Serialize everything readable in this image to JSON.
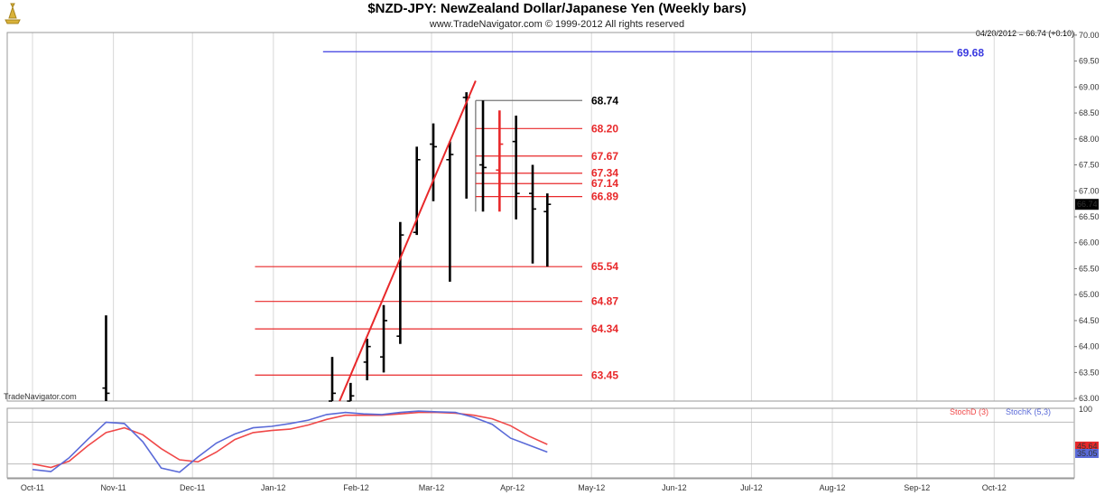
{
  "header": {
    "title": "$NZD-JPY:  NewZealand Dollar/Japanese Yen  (Weekly bars)",
    "subtitle": "www.TradeNavigator.com © 1999-2012 All rights reserved",
    "quote": "04/20/2012 = 66.74 (+0.10)",
    "watermark": "TradeNavigator.com",
    "last_price_tag": "66.74"
  },
  "colors": {
    "bar": "#000000",
    "fib_red": "#e8282a",
    "fib_grey": "#777777",
    "target_blue": "#3a3ae0",
    "stoch_d": "#f04848",
    "stoch_k": "#5a6ad8",
    "grid": "#d8d8d8"
  },
  "chart_data": {
    "type": "ohlc",
    "y_ticks": [
      "63.00",
      "63.50",
      "64.00",
      "64.50",
      "65.00",
      "65.50",
      "66.00",
      "66.50",
      "67.00",
      "67.50",
      "68.00",
      "68.50",
      "69.00",
      "69.50",
      "70.00"
    ],
    "ylim": [
      62.95,
      70.05
    ],
    "x_ticks": [
      {
        "label": "Oct-11",
        "week": 0
      },
      {
        "label": "Nov-11",
        "week": 4.4
      },
      {
        "label": "Dec-11",
        "week": 8.7
      },
      {
        "label": "Jan-12",
        "week": 13.1
      },
      {
        "label": "Feb-12",
        "week": 17.6
      },
      {
        "label": "Mar-12",
        "week": 21.7
      },
      {
        "label": "Apr-12",
        "week": 26.1
      },
      {
        "label": "May-12",
        "week": 30.4
      },
      {
        "label": "Jun-12",
        "week": 34.9
      },
      {
        "label": "Jul-12",
        "week": 39.1
      },
      {
        "label": "Aug-12",
        "week": 43.5
      },
      {
        "label": "Sep-12",
        "week": 48.1
      },
      {
        "label": "Oct-12",
        "week": 52.3
      }
    ],
    "bars": [
      {
        "week": 4.0,
        "open": 63.2,
        "high": 64.6,
        "low": 62.9,
        "close": 63.1
      },
      {
        "week": 16.3,
        "open": 62.95,
        "high": 63.8,
        "low": 62.9,
        "close": 63.1
      },
      {
        "week": 17.3,
        "open": 62.95,
        "high": 63.3,
        "low": 62.9,
        "close": 63.05
      },
      {
        "week": 18.2,
        "open": 63.7,
        "high": 64.15,
        "low": 63.35,
        "close": 64.0
      },
      {
        "week": 19.1,
        "open": 63.8,
        "high": 64.8,
        "low": 63.5,
        "close": 64.5
      },
      {
        "week": 20.0,
        "open": 64.2,
        "high": 66.4,
        "low": 64.05,
        "close": 66.15
      },
      {
        "week": 20.9,
        "open": 66.2,
        "high": 67.85,
        "low": 66.15,
        "close": 67.6
      },
      {
        "week": 21.8,
        "open": 67.9,
        "high": 68.3,
        "low": 66.8,
        "close": 67.85
      },
      {
        "week": 22.7,
        "open": 67.6,
        "high": 67.95,
        "low": 65.25,
        "close": 67.7
      },
      {
        "week": 23.6,
        "open": 68.8,
        "high": 68.9,
        "low": 66.85,
        "close": 68.8
      },
      {
        "week": 24.5,
        "open": 67.5,
        "high": 68.74,
        "low": 66.6,
        "close": 67.45
      },
      {
        "week": 25.4,
        "open": 67.4,
        "high": 68.55,
        "low": 66.6,
        "close": 67.9
      },
      {
        "week": 26.3,
        "open": 67.95,
        "high": 68.45,
        "low": 66.45,
        "close": 66.95
      },
      {
        "week": 27.2,
        "open": 66.95,
        "high": 67.5,
        "low": 65.6,
        "close": 66.65
      },
      {
        "week": 28.0,
        "open": 66.6,
        "high": 66.95,
        "low": 65.54,
        "close": 66.74
      }
    ],
    "trendline": {
      "from": {
        "week": 16.7,
        "value": 62.95
      },
      "to": {
        "week": 24.1,
        "value": 69.12
      }
    },
    "target_level": {
      "label": "69.68",
      "value": 69.68,
      "from_week": 15.8
    },
    "retracement_high": {
      "label": "68.74",
      "value": 68.74,
      "from_week": 24.1
    },
    "upper_levels": [
      {
        "label": "68.20",
        "value": 68.2
      },
      {
        "label": "67.67",
        "value": 67.67
      },
      {
        "label": "67.34",
        "value": 67.34
      },
      {
        "label": "67.14",
        "value": 67.14
      },
      {
        "label": "66.89",
        "value": 66.89
      }
    ],
    "upper_from_week": 24.1,
    "lower_levels": [
      {
        "label": "65.54",
        "value": 65.54
      },
      {
        "label": "64.87",
        "value": 64.87
      },
      {
        "label": "64.34",
        "value": 64.34
      },
      {
        "label": "63.45",
        "value": 63.45
      }
    ],
    "lower_from_week": 12.1,
    "levels_to_week": 29.9,
    "stochastic": {
      "legend": [
        "StochD (3)",
        "StochK (5,3)"
      ],
      "ylim": [
        0,
        100
      ],
      "readouts": [
        "45.64",
        "35.05"
      ],
      "reference_levels": [
        80,
        20
      ],
      "weeks": [
        0,
        1,
        2,
        3,
        4,
        5,
        6,
        7,
        8,
        9,
        10,
        11,
        12,
        13,
        14,
        15,
        16,
        17,
        18,
        19,
        20,
        21,
        22,
        23,
        24,
        25,
        26,
        27,
        28
      ],
      "stoch_d": [
        20,
        15,
        24,
        46,
        65,
        72,
        62,
        42,
        26,
        23,
        37,
        55,
        65,
        68,
        70,
        76,
        84,
        90,
        90,
        90,
        92,
        94,
        94,
        93,
        90,
        85,
        75,
        60,
        48
      ],
      "stoch_k": [
        12,
        9,
        29,
        55,
        80,
        78,
        52,
        14,
        8,
        30,
        50,
        63,
        72,
        74,
        78,
        83,
        91,
        94,
        92,
        91,
        94,
        96,
        95,
        94,
        87,
        77,
        57,
        47,
        37
      ]
    }
  }
}
